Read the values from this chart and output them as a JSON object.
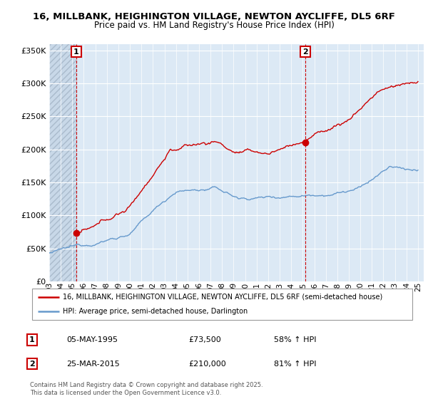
{
  "title_line1": "16, MILLBANK, HEIGHINGTON VILLAGE, NEWTON AYCLIFFE, DL5 6RF",
  "title_line2": "Price paid vs. HM Land Registry's House Price Index (HPI)",
  "y_ticks": [
    0,
    50000,
    100000,
    150000,
    200000,
    250000,
    300000,
    350000
  ],
  "x_start_year": 1993,
  "x_end_year": 2025,
  "sale1_date": 1995.35,
  "sale1_price": 73500,
  "sale2_date": 2015.23,
  "sale2_price": 210000,
  "property_color": "#cc0000",
  "hpi_color": "#6699cc",
  "plot_bg_color": "#dce9f5",
  "hatch_bg_color": "#c8d8e8",
  "legend_label1": "16, MILLBANK, HEIGHINGTON VILLAGE, NEWTON AYCLIFFE, DL5 6RF (semi-detached house)",
  "legend_label2": "HPI: Average price, semi-detached house, Darlington",
  "annotation1_date": "05-MAY-1995",
  "annotation1_price": "£73,500",
  "annotation1_hpi": "58% ↑ HPI",
  "annotation2_date": "25-MAR-2015",
  "annotation2_price": "£210,000",
  "annotation2_hpi": "81% ↑ HPI",
  "footer": "Contains HM Land Registry data © Crown copyright and database right 2025.\nThis data is licensed under the Open Government Licence v3.0."
}
